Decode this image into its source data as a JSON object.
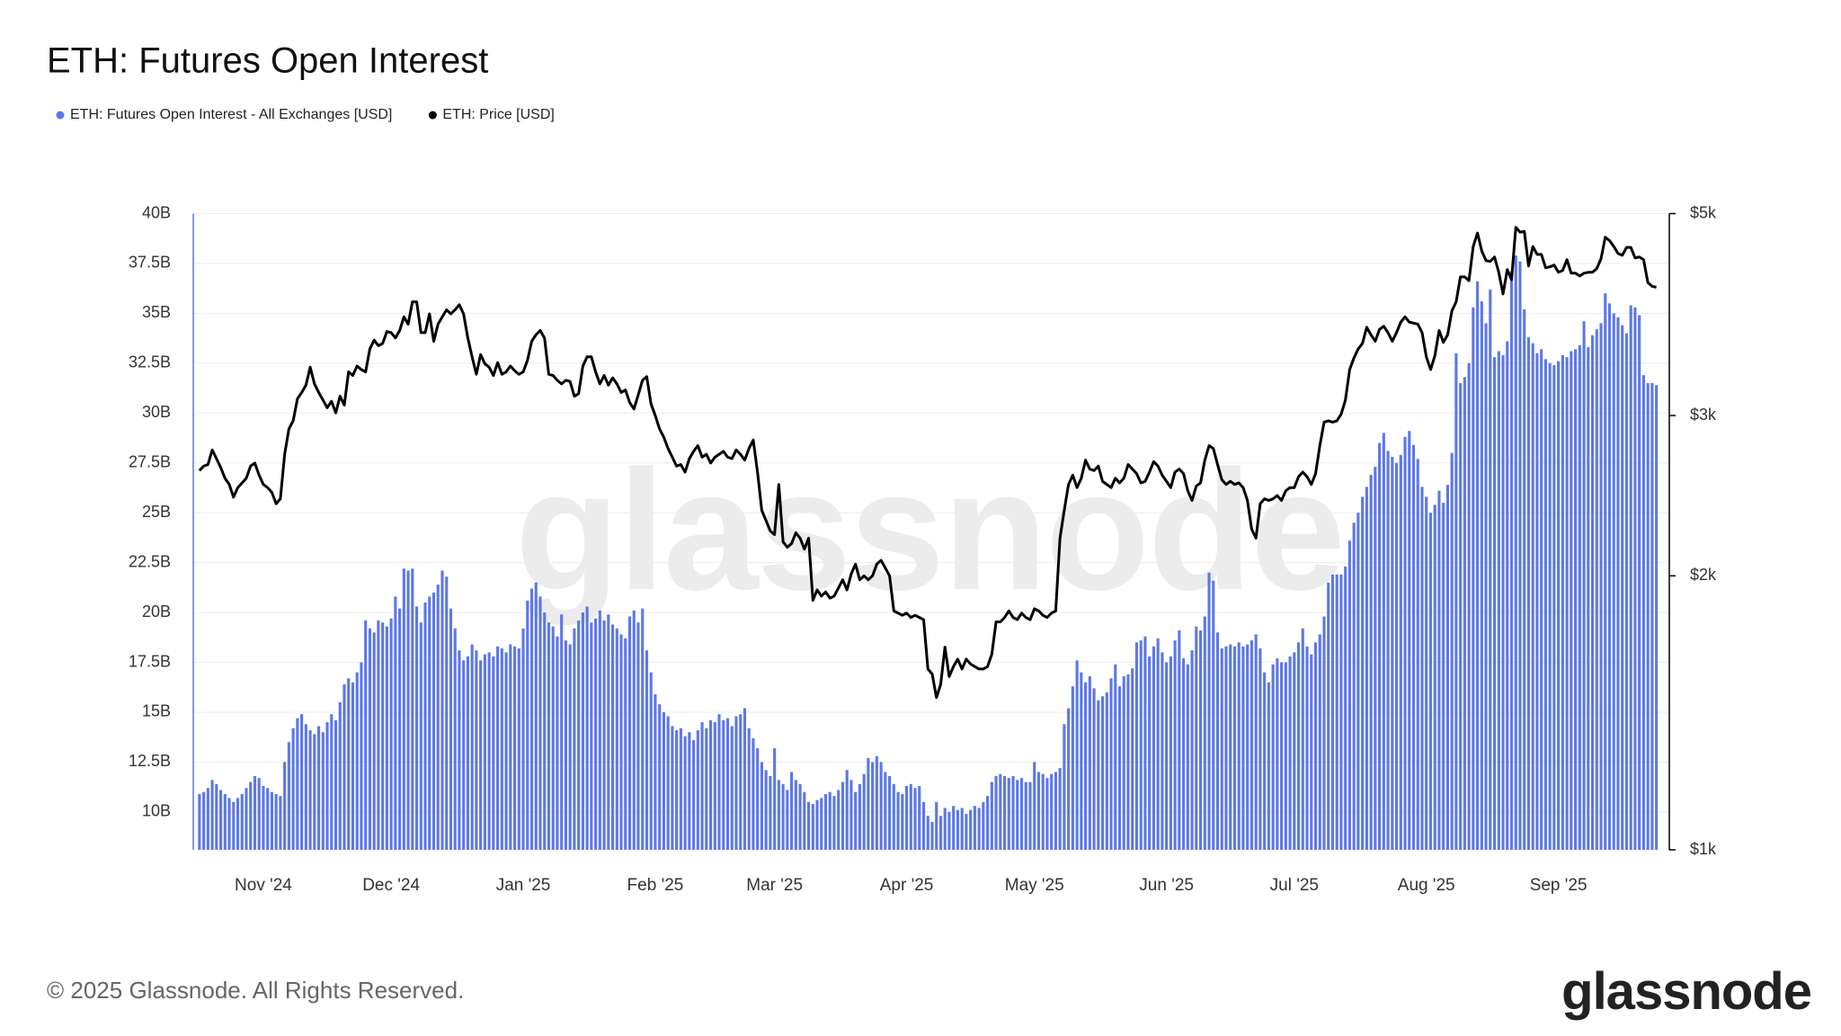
{
  "chart_data": {
    "type": "combo",
    "title": "ETH: Futures Open Interest",
    "watermark": "glassnode",
    "copyright": "© 2025 Glassnode. All Rights Reserved.",
    "brand": "glassnode",
    "legend": "top-left",
    "grid": true,
    "categories": [
      null,
      null,
      null,
      null,
      null,
      null,
      null,
      null,
      null,
      null,
      null,
      null,
      null,
      null,
      null,
      "Nov '24",
      null,
      null,
      null,
      null,
      null,
      null,
      null,
      null,
      null,
      null,
      null,
      null,
      null,
      null,
      null,
      null,
      null,
      null,
      null,
      null,
      null,
      null,
      null,
      null,
      null,
      null,
      null,
      null,
      null,
      "Dec '24",
      null,
      null,
      null,
      null,
      null,
      null,
      null,
      null,
      null,
      null,
      null,
      null,
      null,
      null,
      null,
      null,
      null,
      null,
      null,
      null,
      null,
      null,
      null,
      null,
      null,
      null,
      null,
      null,
      null,
      null,
      "Jan '25",
      null,
      null,
      null,
      null,
      null,
      null,
      null,
      null,
      null,
      null,
      null,
      null,
      null,
      null,
      null,
      null,
      null,
      null,
      null,
      null,
      null,
      null,
      null,
      null,
      null,
      null,
      null,
      null,
      null,
      null,
      "Feb '25",
      null,
      null,
      null,
      null,
      null,
      null,
      null,
      null,
      null,
      null,
      null,
      null,
      null,
      null,
      null,
      null,
      null,
      null,
      null,
      null,
      null,
      null,
      null,
      null,
      null,
      null,
      null,
      "Mar '25",
      null,
      null,
      null,
      null,
      null,
      null,
      null,
      null,
      null,
      null,
      null,
      null,
      null,
      null,
      null,
      null,
      null,
      null,
      null,
      null,
      null,
      null,
      null,
      null,
      null,
      null,
      null,
      null,
      null,
      null,
      "Apr '25",
      null,
      null,
      null,
      null,
      null,
      null,
      null,
      null,
      null,
      null,
      null,
      null,
      null,
      null,
      null,
      null,
      null,
      null,
      null,
      null,
      null,
      null,
      null,
      null,
      null,
      null,
      null,
      null,
      null,
      "May '25",
      null,
      null,
      null,
      null,
      null,
      null,
      null,
      null,
      null,
      null,
      null,
      null,
      null,
      null,
      null,
      null,
      null,
      null,
      null,
      null,
      null,
      null,
      null,
      null,
      null,
      null,
      null,
      null,
      null,
      null,
      "Jun '25",
      null,
      null,
      null,
      null,
      null,
      null,
      null,
      null,
      null,
      null,
      null,
      null,
      null,
      null,
      null,
      null,
      null,
      null,
      null,
      null,
      null,
      null,
      null,
      null,
      null,
      null,
      null,
      null,
      null,
      "Jul '25",
      null,
      null,
      null,
      null,
      null,
      null,
      null,
      null,
      null,
      null,
      null,
      null,
      null,
      null,
      null,
      null,
      null,
      null,
      null,
      null,
      null,
      null,
      null,
      null,
      null,
      null,
      null,
      null,
      null,
      null,
      "Aug '25",
      null,
      null,
      null,
      null,
      null,
      null,
      null,
      null,
      null,
      null,
      null,
      null,
      null,
      null,
      null,
      null,
      null,
      null,
      null,
      null,
      null,
      null,
      null,
      null,
      null,
      null,
      null,
      null,
      null,
      null,
      "Sep '25",
      null,
      null,
      null,
      null,
      null,
      null,
      null,
      null,
      null,
      null,
      null,
      null,
      null,
      null,
      null,
      null,
      null,
      null,
      null,
      null,
      null,
      null,
      null
    ],
    "series": [
      {
        "name": "ETH: Futures Open Interest - All Exchanges [USD]",
        "type": "bar",
        "color": "#5d78e6",
        "axis": "y",
        "values": [
          10.9,
          11.0,
          11.2,
          11.6,
          11.4,
          11.1,
          10.9,
          10.7,
          10.5,
          10.7,
          10.9,
          11.2,
          11.5,
          11.8,
          11.7,
          11.3,
          11.2,
          11.0,
          10.9,
          10.8,
          12.5,
          13.5,
          14.2,
          14.7,
          14.9,
          14.4,
          14.1,
          13.9,
          14.3,
          14.0,
          14.5,
          14.9,
          14.6,
          15.5,
          16.4,
          16.7,
          16.5,
          17.0,
          17.5,
          19.6,
          19.2,
          19.0,
          19.6,
          19.5,
          19.3,
          19.7,
          20.8,
          20.2,
          22.2,
          22.1,
          22.2,
          20.3,
          19.5,
          20.5,
          20.8,
          21.0,
          21.4,
          22.1,
          21.8,
          20.2,
          19.2,
          18.1,
          17.6,
          17.8,
          18.4,
          18.1,
          17.6,
          17.9,
          18.0,
          17.8,
          18.3,
          18.2,
          18.0,
          18.4,
          18.3,
          18.2,
          19.2,
          20.6,
          21.2,
          21.5,
          20.8,
          20.0,
          19.5,
          19.3,
          18.8,
          19.9,
          18.6,
          18.4,
          19.2,
          19.6,
          20.0,
          20.3,
          19.5,
          19.7,
          20.1,
          19.6,
          19.9,
          19.4,
          19.2,
          18.9,
          18.7,
          19.8,
          20.1,
          19.5,
          20.2,
          18.1,
          17.0,
          15.9,
          15.4,
          15.0,
          14.8,
          14.3,
          14.1,
          14.2,
          13.8,
          14.0,
          13.6,
          14.1,
          14.5,
          14.2,
          14.6,
          14.5,
          14.9,
          14.6,
          14.7,
          14.3,
          14.8,
          14.9,
          15.2,
          14.2,
          13.7,
          13.2,
          12.5,
          12.1,
          11.8,
          13.2,
          11.6,
          11.4,
          11.1,
          12.0,
          11.6,
          11.4,
          11.0,
          10.5,
          10.4,
          10.6,
          10.7,
          10.9,
          11.0,
          10.8,
          11.1,
          11.5,
          12.1,
          11.6,
          11.0,
          11.4,
          11.9,
          12.7,
          12.5,
          12.8,
          12.5,
          12.0,
          11.8,
          11.4,
          11.0,
          10.9,
          11.3,
          11.4,
          11.2,
          11.3,
          10.5,
          9.8,
          9.5,
          10.5,
          9.8,
          10.2,
          10.0,
          10.3,
          10.1,
          10.2,
          9.9,
          10.1,
          10.3,
          10.2,
          10.5,
          10.8,
          11.5,
          11.8,
          11.9,
          11.8,
          11.7,
          11.8,
          11.6,
          11.7,
          11.5,
          11.5,
          12.5,
          12.0,
          11.9,
          11.7,
          11.9,
          12.0,
          12.2,
          14.4,
          15.2,
          16.3,
          17.6,
          17.0,
          16.5,
          16.8,
          16.2,
          15.6,
          15.8,
          16.0,
          16.7,
          17.4,
          16.3,
          16.8,
          16.9,
          17.2,
          18.5,
          18.6,
          18.8,
          17.8,
          18.3,
          18.7,
          18.0,
          17.5,
          17.8,
          18.6,
          19.1,
          17.7,
          17.4,
          18.1,
          19.3,
          19.1,
          19.8,
          22.0,
          21.6,
          19.0,
          18.2,
          18.3,
          18.4,
          18.3,
          18.5,
          18.3,
          18.4,
          18.6,
          18.9,
          18.2,
          17.0,
          16.5,
          17.4,
          17.7,
          17.5,
          17.5,
          17.8,
          18.0,
          18.5,
          19.2,
          18.3,
          17.9,
          18.5,
          18.9,
          19.8,
          21.5,
          21.9,
          21.9,
          21.9,
          22.3,
          23.6,
          24.5,
          25.0,
          25.8,
          26.3,
          26.9,
          27.3,
          28.5,
          29.0,
          28.1,
          27.8,
          27.5,
          27.9,
          28.8,
          29.1,
          28.4,
          27.7,
          26.3,
          25.8,
          25.0,
          25.4,
          26.1,
          25.5,
          26.4,
          28.0,
          33.0,
          31.5,
          31.8,
          32.5,
          35.3,
          36.6,
          35.6,
          34.5,
          36.2,
          32.8,
          33.1,
          32.9,
          33.6,
          37.1,
          37.9,
          37.6,
          35.2,
          33.8,
          33.5,
          33.0,
          33.2,
          32.7,
          32.5,
          32.4,
          32.6,
          32.9,
          32.8,
          33.1,
          33.2,
          33.4,
          34.6,
          33.3,
          33.9,
          34.2,
          34.5,
          36.0,
          35.5,
          35.0,
          34.8,
          34.4,
          34.0,
          35.4,
          35.3,
          34.9,
          31.9,
          31.5,
          31.5,
          31.4
        ]
      },
      {
        "name": "ETH: Price [USD]",
        "type": "line",
        "color": "#000000",
        "axis": "y2",
        "values": [
          2610,
          2640,
          2650,
          2750,
          2690,
          2630,
          2560,
          2520,
          2440,
          2500,
          2530,
          2560,
          2640,
          2660,
          2580,
          2520,
          2500,
          2470,
          2400,
          2430,
          2720,
          2900,
          2960,
          3130,
          3180,
          3240,
          3390,
          3250,
          3180,
          3120,
          3060,
          3110,
          3020,
          3150,
          3080,
          3350,
          3320,
          3400,
          3370,
          3350,
          3550,
          3630,
          3580,
          3600,
          3710,
          3700,
          3650,
          3720,
          3850,
          3780,
          4000,
          4000,
          3700,
          3700,
          3880,
          3620,
          3780,
          3850,
          3920,
          3880,
          3920,
          3970,
          3880,
          3650,
          3480,
          3330,
          3500,
          3420,
          3390,
          3320,
          3430,
          3330,
          3350,
          3400,
          3360,
          3330,
          3350,
          3450,
          3620,
          3680,
          3720,
          3650,
          3330,
          3320,
          3280,
          3250,
          3280,
          3270,
          3150,
          3170,
          3400,
          3480,
          3480,
          3350,
          3250,
          3320,
          3240,
          3300,
          3250,
          3180,
          3200,
          3100,
          3050,
          3160,
          3280,
          3310,
          3090,
          3000,
          2900,
          2840,
          2760,
          2700,
          2640,
          2650,
          2600,
          2690,
          2740,
          2780,
          2700,
          2720,
          2660,
          2700,
          2720,
          2740,
          2700,
          2690,
          2750,
          2720,
          2680,
          2760,
          2820,
          2600,
          2360,
          2300,
          2240,
          2220,
          2520,
          2180,
          2150,
          2170,
          2230,
          2200,
          2140,
          2200,
          1880,
          1930,
          1900,
          1920,
          1890,
          1900,
          1940,
          1980,
          1930,
          2010,
          2060,
          1980,
          2000,
          1980,
          2000,
          2060,
          2080,
          2040,
          2000,
          1830,
          1820,
          1810,
          1820,
          1800,
          1810,
          1800,
          1790,
          1580,
          1560,
          1470,
          1520,
          1670,
          1550,
          1590,
          1620,
          1580,
          1620,
          1600,
          1590,
          1580,
          1580,
          1590,
          1640,
          1780,
          1780,
          1800,
          1830,
          1800,
          1790,
          1820,
          1800,
          1790,
          1840,
          1830,
          1810,
          1800,
          1820,
          1830,
          2200,
          2360,
          2520,
          2580,
          2500,
          2560,
          2680,
          2620,
          2610,
          2640,
          2540,
          2520,
          2500,
          2560,
          2530,
          2560,
          2650,
          2620,
          2590,
          2530,
          2540,
          2600,
          2670,
          2640,
          2580,
          2540,
          2500,
          2600,
          2620,
          2590,
          2480,
          2420,
          2510,
          2530,
          2680,
          2780,
          2760,
          2650,
          2550,
          2520,
          2540,
          2520,
          2530,
          2500,
          2420,
          2250,
          2200,
          2400,
          2430,
          2420,
          2430,
          2450,
          2420,
          2480,
          2500,
          2500,
          2570,
          2600,
          2570,
          2520,
          2590,
          2780,
          2950,
          2960,
          2950,
          2960,
          3010,
          3120,
          3370,
          3470,
          3550,
          3600,
          3750,
          3680,
          3620,
          3730,
          3760,
          3700,
          3620,
          3700,
          3800,
          3850,
          3800,
          3790,
          3780,
          3700,
          3480,
          3370,
          3490,
          3720,
          3610,
          3680,
          3910,
          4000,
          4260,
          4260,
          4220,
          4600,
          4760,
          4550,
          4440,
          4430,
          4480,
          4310,
          4080,
          4340,
          4230,
          4830,
          4770,
          4780,
          4380,
          4600,
          4510,
          4510,
          4360,
          4370,
          4390,
          4310,
          4330,
          4450,
          4300,
          4300,
          4270,
          4300,
          4310,
          4310,
          4350,
          4460,
          4710,
          4670,
          4600,
          4520,
          4500,
          4590,
          4590,
          4470,
          4480,
          4450,
          4200,
          4160,
          4150
        ]
      }
    ],
    "ylim": [
      8.1,
      40
    ],
    "yticks": [
      {
        "value": 10,
        "label": "10B"
      },
      {
        "value": 12.5,
        "label": "12.5B"
      },
      {
        "value": 15,
        "label": "15B"
      },
      {
        "value": 17.5,
        "label": "17.5B"
      },
      {
        "value": 20,
        "label": "20B"
      },
      {
        "value": 22.5,
        "label": "22.5B"
      },
      {
        "value": 25,
        "label": "25B"
      },
      {
        "value": 27.5,
        "label": "27.5B"
      },
      {
        "value": 30,
        "label": "30B"
      },
      {
        "value": 32.5,
        "label": "32.5B"
      },
      {
        "value": 35,
        "label": "35B"
      },
      {
        "value": 37.5,
        "label": "37.5B"
      },
      {
        "value": 40,
        "label": "40B"
      }
    ],
    "y2scale": "log",
    "y2lim": [
      1000,
      5000
    ],
    "y2ticks": [
      {
        "value": 1000,
        "label": "$1k"
      },
      {
        "value": 2000,
        "label": "$2k"
      },
      {
        "value": 3000,
        "label": "$3k"
      },
      {
        "value": 5000,
        "label": "$5k"
      }
    ]
  }
}
